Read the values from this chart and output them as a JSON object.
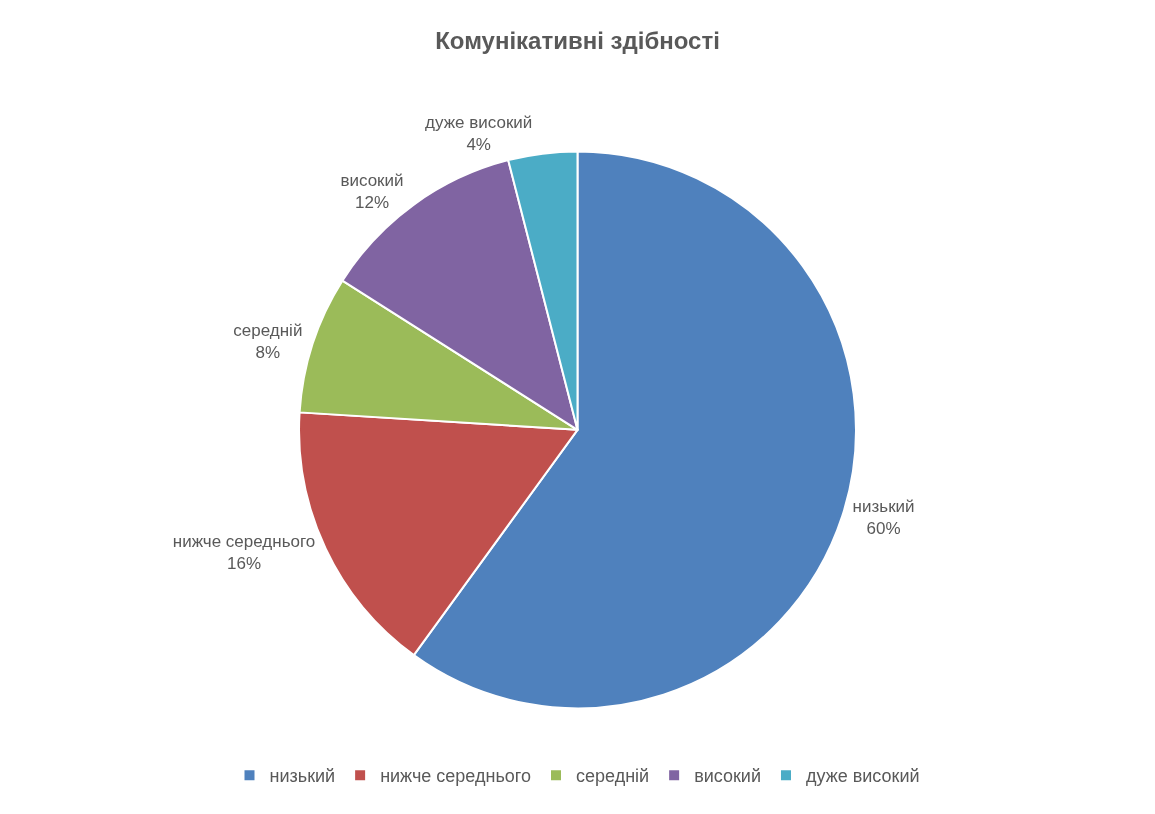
{
  "chart_data": {
    "type": "pie",
    "title": "Комунікативні здібності",
    "categories": [
      "низький",
      "нижче середнього",
      "середній",
      "високий",
      "дуже високий"
    ],
    "values": [
      60,
      16,
      8,
      12,
      4
    ],
    "colors": [
      "#4f81bd",
      "#c0504d",
      "#9bbb59",
      "#8064a2",
      "#4bacc6"
    ],
    "value_labels": [
      "60%",
      "16%",
      "8%",
      "12%",
      "4%"
    ],
    "legend": "bottom"
  }
}
